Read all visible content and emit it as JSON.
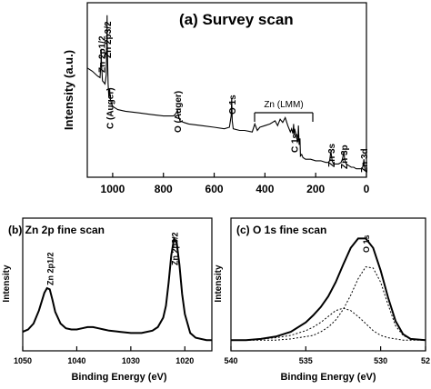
{
  "figure": {
    "panels": [
      {
        "id": "a",
        "title": "(a) Survey scan",
        "ylabel": "Intensity (a.u.)",
        "xticks": [
          "1000",
          "800",
          "600",
          "400",
          "200",
          "0"
        ],
        "peak_labels": [
          {
            "text": "Zn 2p1/2",
            "x": 1045
          },
          {
            "text": "Zn 2p3/2",
            "x": 1022
          },
          {
            "text": "C (Auger)",
            "x": 1012
          },
          {
            "text": "O (Auger)",
            "x": 745
          },
          {
            "text": "O 1s",
            "x": 531
          },
          {
            "text": "C 1s",
            "x": 285
          },
          {
            "text": "Zn 3s",
            "x": 140
          },
          {
            "text": "Zn 3p",
            "x": 89
          },
          {
            "text": "Zn 3d",
            "x": 10
          }
        ],
        "bracket_label": "Zn (LMM)"
      },
      {
        "id": "b",
        "title": "(b) Zn 2p fine scan",
        "ylabel": "Intensity",
        "xlabel": "Binding Energy (eV)",
        "xticks": [
          "1050",
          "1040",
          "1030",
          "1020"
        ],
        "peak_labels": [
          {
            "text": "Zn 2p1/2",
            "x": 1045
          },
          {
            "text": "Zn 2p3/2",
            "x": 1022
          }
        ]
      },
      {
        "id": "c",
        "title": "(c) O 1s fine scan",
        "ylabel": "Intensity",
        "xlabel": "Binding Energy (eV)",
        "xticks": [
          "540",
          "535",
          "530",
          "52"
        ],
        "peak_labels": [
          {
            "text": "O 1s",
            "x": 531
          }
        ]
      }
    ]
  },
  "chart_data": [
    {
      "type": "line",
      "panel": "a",
      "xlim": [
        1100,
        0
      ],
      "ylim": [
        0,
        1
      ],
      "x_reversed": true,
      "series": [
        {
          "x": [
            1100,
            1080,
            1060,
            1050,
            1046,
            1045,
            1044,
            1040,
            1030,
            1025,
            1023,
            1022,
            1021,
            1018,
            1015,
            1012,
            1010,
            1005,
            1000,
            980,
            950,
            900,
            850,
            800,
            760,
            748,
            745,
            742,
            735,
            720,
            700,
            650,
            600,
            560,
            540,
            533,
            531,
            529,
            525,
            500,
            480,
            450,
            440,
            430,
            420,
            400,
            380,
            360,
            350,
            340,
            330,
            320,
            310,
            300,
            295,
            290,
            287,
            285,
            283,
            280,
            275,
            270,
            268,
            265,
            262,
            260,
            255,
            250,
            240,
            220,
            200,
            180,
            160,
            150,
            145,
            140,
            135,
            130,
            120,
            110,
            100,
            95,
            92,
            89,
            86,
            80,
            70,
            60,
            50,
            40,
            30,
            20,
            15,
            12,
            10,
            8,
            5,
            0
          ],
          "y": [
            0.66,
            0.64,
            0.61,
            0.6,
            0.7,
            0.78,
            0.69,
            0.58,
            0.56,
            0.62,
            0.82,
            0.99,
            0.8,
            0.56,
            0.48,
            0.53,
            0.47,
            0.44,
            0.42,
            0.4,
            0.39,
            0.38,
            0.37,
            0.36,
            0.36,
            0.38,
            0.4,
            0.37,
            0.33,
            0.32,
            0.31,
            0.3,
            0.29,
            0.28,
            0.29,
            0.36,
            0.47,
            0.33,
            0.28,
            0.27,
            0.27,
            0.26,
            0.31,
            0.27,
            0.29,
            0.3,
            0.31,
            0.33,
            0.3,
            0.34,
            0.32,
            0.35,
            0.3,
            0.26,
            0.28,
            0.25,
            0.31,
            0.24,
            0.28,
            0.26,
            0.22,
            0.2,
            0.3,
            0.18,
            0.22,
            0.11,
            0.12,
            0.1,
            0.09,
            0.09,
            0.08,
            0.08,
            0.07,
            0.07,
            0.08,
            0.14,
            0.08,
            0.06,
            0.06,
            0.06,
            0.07,
            0.09,
            0.11,
            0.14,
            0.09,
            0.06,
            0.05,
            0.04,
            0.04,
            0.03,
            0.03,
            0.03,
            0.04,
            0.06,
            0.09,
            0.05,
            0.02,
            0.01
          ]
        }
      ]
    },
    {
      "type": "line",
      "panel": "b",
      "xlabel": "Binding Energy (eV)",
      "ylabel": "Intensity",
      "xlim": [
        1050,
        1015
      ],
      "ylim": [
        0,
        1
      ],
      "x_reversed": true,
      "series": [
        {
          "x": [
            1050,
            1049,
            1048,
            1047,
            1046,
            1045.5,
            1045,
            1044.5,
            1044,
            1043,
            1042,
            1041,
            1040,
            1039,
            1038,
            1037,
            1036,
            1035,
            1034,
            1032,
            1030,
            1028,
            1026,
            1025,
            1024,
            1023.5,
            1023,
            1022.5,
            1022,
            1021.5,
            1021,
            1020.5,
            1020,
            1019,
            1018,
            1016,
            1015
          ],
          "y": [
            0.13,
            0.15,
            0.2,
            0.31,
            0.46,
            0.5,
            0.49,
            0.4,
            0.3,
            0.2,
            0.16,
            0.15,
            0.15,
            0.16,
            0.17,
            0.17,
            0.16,
            0.15,
            0.14,
            0.13,
            0.12,
            0.12,
            0.14,
            0.17,
            0.25,
            0.35,
            0.55,
            0.78,
            0.92,
            0.88,
            0.7,
            0.45,
            0.28,
            0.12,
            0.08,
            0.06,
            0.06
          ]
        }
      ]
    },
    {
      "type": "line",
      "panel": "c",
      "xlabel": "Binding Energy (eV)",
      "ylabel": "Intensity",
      "xlim": [
        540,
        527
      ],
      "ylim": [
        0,
        1
      ],
      "x_reversed": true,
      "series": [
        {
          "x": [
            540,
            539,
            538,
            537,
            536,
            535,
            534.5,
            534,
            533.5,
            533,
            532.5,
            532,
            531.5,
            531,
            530.5,
            530,
            529.5,
            529,
            528.5,
            528,
            527
          ],
          "y": [
            0.06,
            0.06,
            0.07,
            0.09,
            0.13,
            0.21,
            0.27,
            0.34,
            0.43,
            0.55,
            0.7,
            0.84,
            0.92,
            0.92,
            0.84,
            0.65,
            0.42,
            0.22,
            0.11,
            0.07,
            0.06
          ]
        },
        {
          "x": [
            540,
            539,
            538,
            537,
            536,
            535,
            534.5,
            534,
            533.5,
            533,
            532.5,
            532,
            531.5,
            531,
            530.5,
            530,
            529.5,
            529,
            528.5,
            528,
            527
          ],
          "y": [
            0.06,
            0.06,
            0.06,
            0.06,
            0.07,
            0.09,
            0.1,
            0.13,
            0.17,
            0.23,
            0.32,
            0.44,
            0.58,
            0.68,
            0.67,
            0.55,
            0.36,
            0.18,
            0.1,
            0.07,
            0.06
          ]
        },
        {
          "x": [
            540,
            539,
            538,
            537,
            536,
            535,
            534.5,
            534,
            533.5,
            533,
            532.5,
            532,
            531.5,
            531,
            530.5,
            530,
            529.5,
            529,
            528.5,
            528,
            527
          ],
          "y": [
            0.06,
            0.06,
            0.07,
            0.08,
            0.1,
            0.14,
            0.17,
            0.21,
            0.26,
            0.31,
            0.33,
            0.31,
            0.26,
            0.2,
            0.14,
            0.1,
            0.08,
            0.07,
            0.06,
            0.06,
            0.06
          ]
        }
      ]
    }
  ]
}
